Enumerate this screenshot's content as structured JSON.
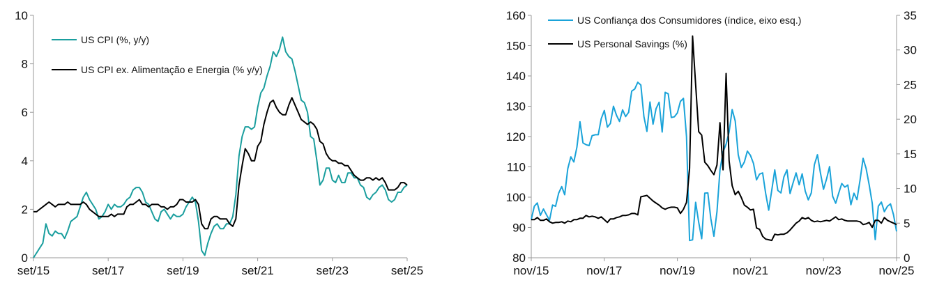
{
  "colors": {
    "cpi": "#1a9e9e",
    "core": "#000000",
    "confidence": "#1aa3d9",
    "savings": "#000000",
    "axis": "#999999"
  },
  "chart_data": [
    {
      "type": "line",
      "title": "",
      "ylim": [
        0,
        10
      ],
      "yticks": [
        "0",
        "2",
        "4",
        "6",
        "8",
        "10"
      ],
      "xticks": [
        "set/15",
        "set/17",
        "set/19",
        "set/21",
        "set/23",
        "set/25"
      ],
      "x_start": "set/15",
      "x_end": "set/25",
      "series": [
        {
          "name": "US CPI (%, y/y)",
          "color_key": "cpi",
          "start_index": 0,
          "values": [
            0.0,
            0.2,
            0.4,
            0.6,
            1.4,
            1.0,
            0.9,
            1.1,
            1.0,
            1.0,
            0.8,
            1.1,
            1.5,
            1.6,
            1.7,
            2.1,
            2.5,
            2.7,
            2.4,
            2.2,
            2.0,
            1.6,
            1.7,
            1.9,
            2.2,
            2.0,
            2.2,
            2.1,
            2.1,
            2.2,
            2.4,
            2.5,
            2.8,
            2.9,
            2.9,
            2.7,
            2.3,
            2.2,
            1.9,
            1.6,
            1.5,
            1.9,
            2.0,
            1.8,
            1.6,
            1.8,
            1.7,
            1.7,
            1.8,
            2.1,
            2.3,
            2.5,
            2.3,
            1.5,
            0.3,
            0.1,
            0.6,
            1.0,
            1.3,
            1.4,
            1.2,
            1.2,
            1.4,
            1.4,
            1.7,
            2.6,
            4.2,
            5.0,
            5.4,
            5.4,
            5.3,
            5.4,
            6.2,
            6.8,
            7.0,
            7.5,
            7.9,
            8.5,
            8.3,
            8.6,
            9.1,
            8.5,
            8.3,
            8.2,
            7.7,
            7.1,
            6.5,
            6.4,
            6.0,
            5.0,
            4.9,
            4.0,
            3.0,
            3.2,
            3.7,
            3.7,
            3.2,
            3.1,
            3.4,
            3.1,
            3.1,
            3.5,
            3.5,
            3.3,
            3.3,
            3.0,
            2.9,
            2.5,
            2.4,
            2.6,
            2.7,
            2.9,
            3.0,
            2.8,
            2.4,
            2.3,
            2.4,
            2.7,
            2.7,
            2.9,
            3.0
          ]
        },
        {
          "name": "US CPI ex. Alimentação e Energia (% y/y)",
          "color_key": "core",
          "start_index": 0,
          "values": [
            1.9,
            1.9,
            2.0,
            2.1,
            2.2,
            2.3,
            2.2,
            2.1,
            2.2,
            2.2,
            2.2,
            2.3,
            2.2,
            2.2,
            2.2,
            2.2,
            2.3,
            2.2,
            2.0,
            1.9,
            1.8,
            1.7,
            1.7,
            1.7,
            1.7,
            1.8,
            1.7,
            1.8,
            1.8,
            1.8,
            2.1,
            2.2,
            2.2,
            2.3,
            2.4,
            2.2,
            2.2,
            2.1,
            2.2,
            2.2,
            2.2,
            2.1,
            2.1,
            2.0,
            2.1,
            2.1,
            2.2,
            2.4,
            2.4,
            2.3,
            2.3,
            2.3,
            2.4,
            2.2,
            1.4,
            1.2,
            1.2,
            1.6,
            1.7,
            1.7,
            1.6,
            1.6,
            1.6,
            1.4,
            1.3,
            1.6,
            3.0,
            3.8,
            4.5,
            4.3,
            4.0,
            4.0,
            4.6,
            4.8,
            5.5,
            6.0,
            6.4,
            6.5,
            6.2,
            6.0,
            5.9,
            5.9,
            6.3,
            6.6,
            6.3,
            6.0,
            5.7,
            5.6,
            5.5,
            5.6,
            5.5,
            5.3,
            4.8,
            4.7,
            4.3,
            4.1,
            4.0,
            4.0,
            3.9,
            3.9,
            3.8,
            3.8,
            3.6,
            3.4,
            3.3,
            3.2,
            3.2,
            3.3,
            3.3,
            3.2,
            3.3,
            3.2,
            3.3,
            3.1,
            2.8,
            2.8,
            2.8,
            2.9,
            3.1,
            3.1,
            3.0
          ]
        }
      ],
      "legend_position": "top-left"
    },
    {
      "type": "line",
      "title": "",
      "ylim": [
        80,
        160
      ],
      "yticks": [
        "80",
        "90",
        "100",
        "110",
        "120",
        "130",
        "140",
        "150",
        "160"
      ],
      "y2lim": [
        0,
        35
      ],
      "y2ticks": [
        "0",
        "5",
        "10",
        "15",
        "20",
        "25",
        "30",
        "35"
      ],
      "xticks": [
        "nov/15",
        "nov/17",
        "nov/19",
        "nov/21",
        "nov/23",
        "nov/25"
      ],
      "x_start": "nov/15",
      "x_end": "nov/25",
      "series": [
        {
          "name": "US Confiança dos Consumidores (índice, eixo esq.)",
          "color_key": "confidence",
          "axis": "left",
          "start_index": 0,
          "values": [
            92.6,
            97.0,
            98.1,
            94.0,
            96.1,
            94.2,
            92.4,
            97.4,
            97.0,
            101.3,
            103.5,
            100.8,
            109.4,
            113.3,
            111.6,
            116.5,
            124.9,
            117.9,
            117.3,
            117.0,
            120.3,
            120.6,
            120.6,
            125.9,
            128.6,
            123.1,
            124.3,
            130.0,
            127.0,
            125.0,
            128.8,
            126.6,
            128.0,
            135.0,
            135.7,
            137.9,
            137.0,
            126.6,
            121.7,
            131.4,
            124.1,
            129.2,
            131.3,
            121.5,
            134.6,
            134.1,
            126.3,
            126.5,
            127.8,
            131.6,
            132.6,
            120.0,
            85.7,
            85.9,
            98.3,
            91.7,
            86.3,
            101.3,
            101.4,
            92.9,
            87.1,
            95.2,
            109.0,
            114.9,
            117.5,
            121.5,
            128.9,
            125.1,
            114.0,
            109.8,
            111.6,
            115.2,
            113.8,
            111.1,
            105.7,
            107.6,
            108.0,
            101.3,
            95.7,
            102.3,
            109.0,
            102.2,
            101.4,
            106.7,
            109.0,
            101.2,
            104.7,
            108.0,
            104.1,
            107.7,
            102.0,
            99.1,
            101.4,
            110.7,
            114.0,
            108.0,
            102.6,
            106.0,
            110.1,
            100.3,
            98.0,
            101.3,
            104.5,
            103.3,
            104.0,
            97.5,
            101.3,
            99.2,
            105.6,
            112.8,
            109.5,
            104.1,
            98.0,
            86.0,
            97.0,
            98.4,
            95.2,
            97.0,
            97.8,
            94.2,
            88.7
          ]
        },
        {
          "name": "US Personal Savings (%)",
          "color_key": "savings",
          "axis": "right",
          "start_index": 0,
          "values": [
            5.5,
            5.5,
            5.8,
            5.4,
            5.4,
            5.6,
            5.2,
            5.0,
            5.1,
            5.1,
            5.2,
            5.0,
            5.3,
            5.2,
            5.5,
            5.5,
            5.7,
            5.7,
            6.1,
            5.9,
            6.0,
            5.9,
            5.7,
            5.9,
            5.5,
            5.1,
            5.6,
            5.6,
            5.8,
            5.9,
            6.1,
            6.1,
            6.2,
            6.4,
            6.4,
            6.2,
            8.8,
            8.9,
            9.0,
            8.6,
            8.2,
            7.9,
            7.6,
            7.2,
            7.0,
            7.2,
            7.3,
            7.3,
            7.2,
            6.4,
            7.0,
            8.0,
            12.9,
            32.0,
            25.0,
            18.2,
            17.7,
            13.8,
            13.3,
            12.6,
            12.0,
            13.4,
            19.5,
            12.7,
            26.6,
            14.0,
            10.4,
            9.1,
            9.6,
            8.7,
            7.6,
            7.3,
            6.9,
            7.0,
            4.3,
            4.1,
            3.1,
            2.7,
            2.6,
            2.5,
            3.4,
            3.3,
            3.4,
            3.4,
            3.6,
            4.0,
            4.5,
            5.0,
            5.3,
            5.8,
            5.6,
            5.8,
            5.4,
            5.2,
            5.3,
            5.2,
            5.3,
            5.4,
            5.3,
            5.6,
            5.9,
            5.5,
            5.6,
            5.4,
            5.3,
            5.3,
            5.3,
            5.3,
            5.2,
            4.8,
            4.9,
            5.1,
            4.4,
            5.4,
            5.4,
            5.0,
            5.8,
            5.4,
            5.2,
            5.0,
            4.8
          ]
        }
      ],
      "legend_position": "top-left"
    }
  ]
}
